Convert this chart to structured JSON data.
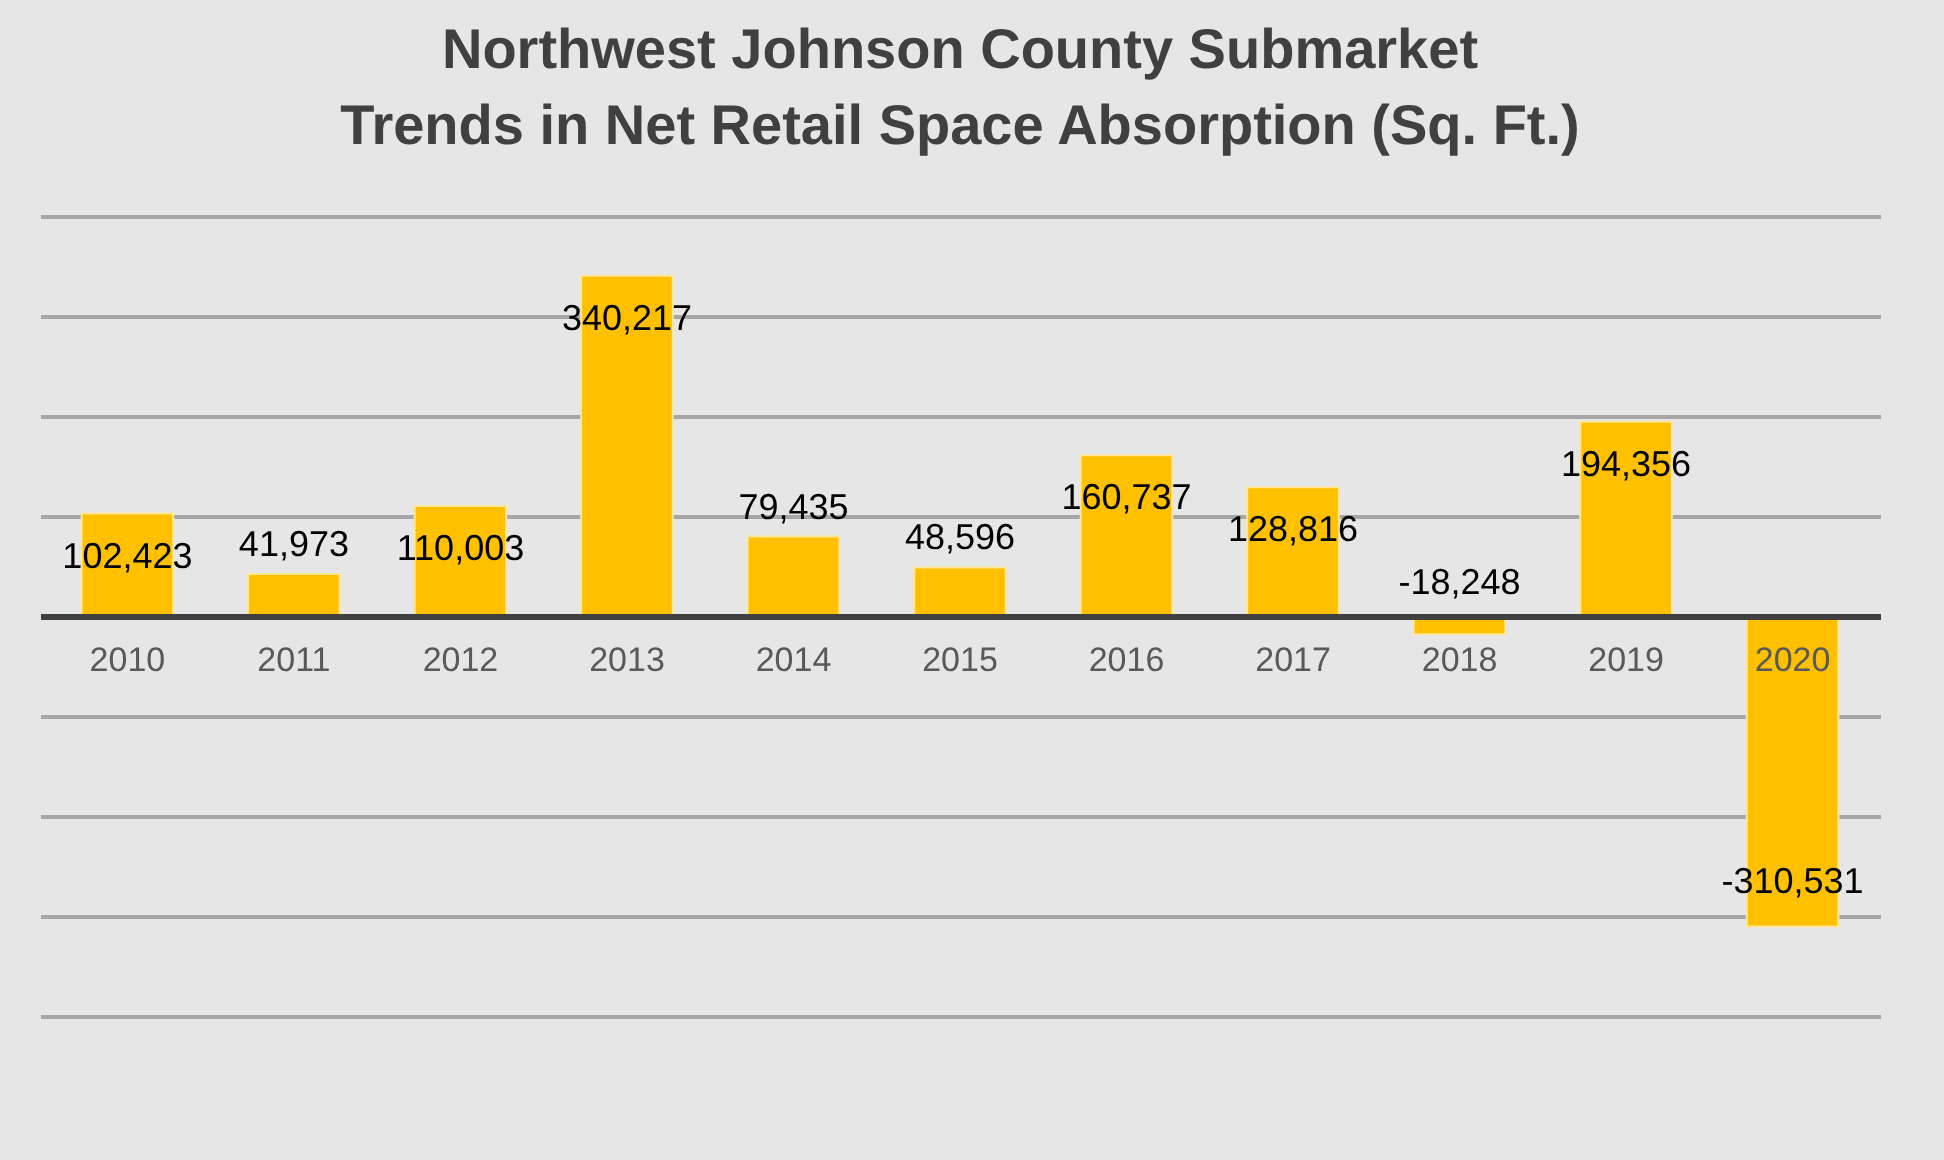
{
  "chart_data": {
    "type": "bar",
    "title": "Northwest Johnson County Submarket\nTrends in Net Retail Space Absorption (Sq. Ft.)",
    "categories": [
      "2010",
      "2011",
      "2012",
      "2013",
      "2014",
      "2015",
      "2016",
      "2017",
      "2018",
      "2019",
      "2020"
    ],
    "values": [
      102423,
      41973,
      110003,
      340217,
      79435,
      48596,
      160737,
      128816,
      -18248,
      194356,
      -310531
    ],
    "value_labels": [
      "102,423",
      "41,973",
      "110,003",
      "340,217",
      "79,435",
      "48,596",
      "160,737",
      "128,816",
      "-18,248",
      "194,356",
      "-310,531"
    ],
    "color": "#ffc000",
    "grid": "y",
    "tick_labels": "x"
  }
}
